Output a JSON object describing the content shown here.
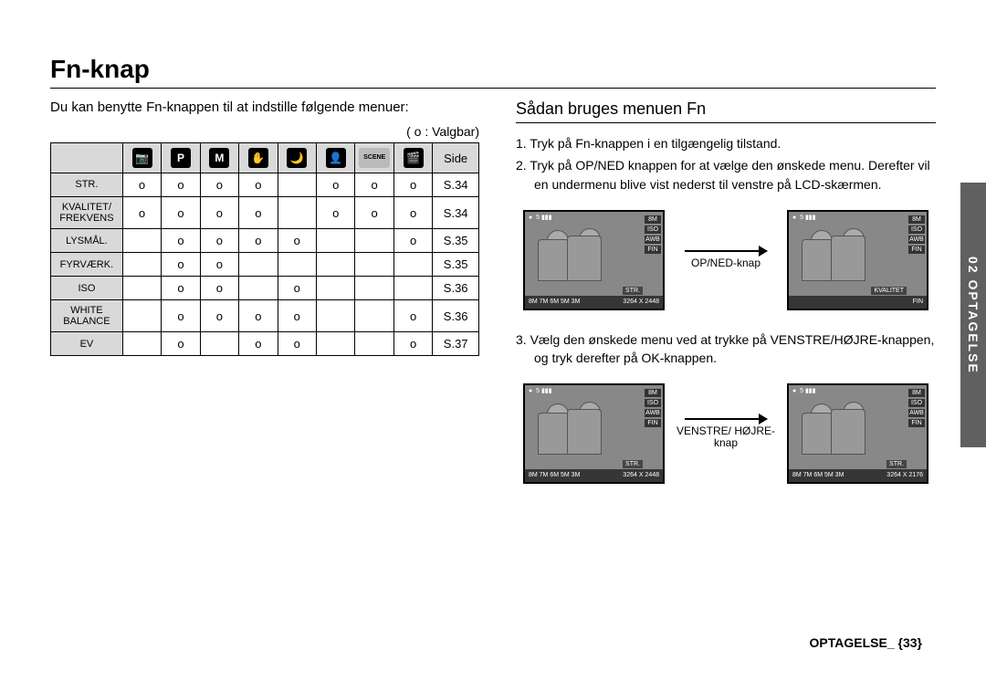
{
  "page": {
    "title": "Fn-knap",
    "side_tab": "02 OPTAGELSE",
    "footer": "OPTAGELSE_ {33}"
  },
  "left": {
    "intro": "Du kan benytte Fn-knappen til at indstille følgende menuer:",
    "legend": "( o : Valgbar)",
    "table": {
      "last_header": "Side",
      "mode_icons": [
        {
          "name": "auto-mode-icon",
          "glyph": "📷"
        },
        {
          "name": "program-mode-icon",
          "glyph": "P"
        },
        {
          "name": "manual-mode-icon",
          "glyph": "M"
        },
        {
          "name": "hand-mode-icon",
          "glyph": "✋"
        },
        {
          "name": "night-mode-icon",
          "glyph": "🌙"
        },
        {
          "name": "portrait-mode-icon",
          "glyph": "👤"
        },
        {
          "name": "scene-mode-icon",
          "glyph": "SCENE"
        },
        {
          "name": "movie-mode-icon",
          "glyph": "🎬"
        }
      ],
      "rows": [
        {
          "label": "STR.",
          "cells": [
            "o",
            "o",
            "o",
            "o",
            "",
            "o",
            "o",
            "o"
          ],
          "page": "S.34"
        },
        {
          "label": "KVALITET/ FREKVENS",
          "cells": [
            "o",
            "o",
            "o",
            "o",
            "",
            "o",
            "o",
            "o"
          ],
          "page": "S.34"
        },
        {
          "label": "LYSMÅL.",
          "cells": [
            "",
            "o",
            "o",
            "o",
            "o",
            "",
            "",
            "o"
          ],
          "page": "S.35"
        },
        {
          "label": "FYRVÆRK.",
          "cells": [
            "",
            "o",
            "o",
            "",
            "",
            "",
            "",
            ""
          ],
          "page": "S.35"
        },
        {
          "label": "ISO",
          "cells": [
            "",
            "o",
            "o",
            "",
            "o",
            "",
            "",
            ""
          ],
          "page": "S.36"
        },
        {
          "label": "WHITE BALANCE",
          "cells": [
            "",
            "o",
            "o",
            "o",
            "o",
            "",
            "",
            "o"
          ],
          "page": "S.36"
        },
        {
          "label": "EV",
          "cells": [
            "",
            "o",
            "",
            "o",
            "o",
            "",
            "",
            "o"
          ],
          "page": "S.37"
        }
      ]
    }
  },
  "right": {
    "subheading": "Sådan bruges menuen Fn",
    "step1": "1. Tryk på Fn-knappen i en tilgængelig tilstand.",
    "step2": "2. Tryk på OP/NED knappen for at vælge den ønskede menu. Derefter vil en undermenu blive vist nederst til venstre på LCD-skærmen.",
    "step3": "3. Vælg den ønskede menu ved at trykke på VENSTRE/HØJRE-knappen, og tryk derefter på OK-knappen.",
    "arrow1_label": "OP/NED-knap",
    "arrow2_label": "VENSTRE/ HØJRE-knap",
    "lcd": {
      "caption_str": "STR.",
      "caption_kval": "KVALITET",
      "bottom_left": "8M 7M 6M 5M 3M",
      "bottom_right1": "3264 X 2448",
      "bottom_right2": "3264 X 2176",
      "side_labels": [
        "8M",
        "ISO",
        "AWB",
        "FIN"
      ]
    }
  }
}
